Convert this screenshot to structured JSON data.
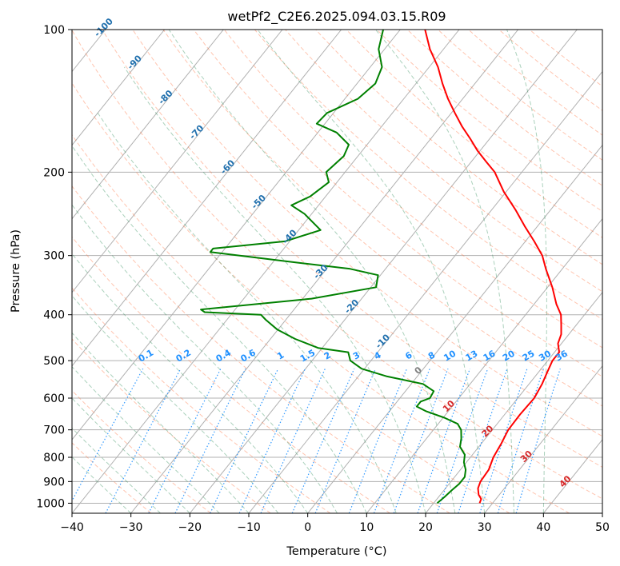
{
  "chart_data": {
    "type": "line",
    "subtype": "skew-t log-p diagram",
    "title": "wetPf2_C2E6.2025.094.03.15.R09",
    "xlabel": "Temperature (°C)",
    "ylabel": "Pressure (hPa)",
    "xlim": [
      -40,
      50
    ],
    "ylim": [
      1050,
      100
    ],
    "y_scale": "log",
    "x_ticks": [
      "−40",
      "−30",
      "−20",
      "−10",
      "0",
      "10",
      "20",
      "30",
      "40",
      "50"
    ],
    "y_ticks": [
      "100",
      "200",
      "300",
      "400",
      "500",
      "600",
      "700",
      "800",
      "900",
      "1000"
    ],
    "grid": true,
    "colors": {
      "temperature": "#ff0000",
      "dewpoint": "#008000",
      "dry_adiabat": "#ff7f50",
      "moist_adiabat": "#2e8b57",
      "mixing_ratio": "#1e90ff",
      "isotherm": "#808080",
      "isotherm_label": "#1f6fad",
      "isotherm_label_warm": "#d62728"
    },
    "isotherm_labels_cold": [
      "-100",
      "-90",
      "-80",
      "-70",
      "-60",
      "-50",
      "-40",
      "-30",
      "-20",
      "-10"
    ],
    "isotherm_labels_cold_values": [
      -100,
      -90,
      -80,
      -70,
      -60,
      -50,
      -40,
      -30,
      -20,
      -10
    ],
    "isotherm_label_zero": "0",
    "isotherm_labels_warm": [
      "10",
      "20",
      "30",
      "40"
    ],
    "isotherm_labels_warm_values": [
      10,
      20,
      30,
      40
    ],
    "mixing_ratio_labels": [
      "0.1",
      "0.2",
      "0.4",
      "0.6",
      "1",
      "1.5",
      "2",
      "3",
      "4",
      "6",
      "8",
      "10",
      "13",
      "16",
      "20",
      "25",
      "30",
      "36"
    ],
    "mixing_ratio_values": [
      0.1,
      0.2,
      0.4,
      0.6,
      1,
      1.5,
      2,
      3,
      4,
      6,
      8,
      10,
      13,
      16,
      20,
      25,
      30,
      36
    ],
    "series": [
      {
        "name": "temperature",
        "points": [
          [
            1000,
            27.8
          ],
          [
            980,
            27.5
          ],
          [
            960,
            26.5
          ],
          [
            930,
            25.5
          ],
          [
            900,
            25.0
          ],
          [
            850,
            24.8
          ],
          [
            800,
            23.9
          ],
          [
            750,
            23.4
          ],
          [
            700,
            22.7
          ],
          [
            650,
            22.6
          ],
          [
            600,
            22.8
          ],
          [
            560,
            22.2
          ],
          [
            530,
            21.5
          ],
          [
            500,
            20.8
          ],
          [
            480,
            20.8
          ],
          [
            460,
            19.4
          ],
          [
            440,
            18.7
          ],
          [
            420,
            17.4
          ],
          [
            400,
            16.0
          ],
          [
            380,
            13.8
          ],
          [
            350,
            10.8
          ],
          [
            320,
            7.2
          ],
          [
            300,
            4.8
          ],
          [
            280,
            1.5
          ],
          [
            260,
            -2.2
          ],
          [
            240,
            -6.0
          ],
          [
            220,
            -10.4
          ],
          [
            200,
            -14.6
          ],
          [
            190,
            -17.5
          ],
          [
            180,
            -20.5
          ],
          [
            170,
            -23.3
          ],
          [
            160,
            -26.4
          ],
          [
            150,
            -29.4
          ],
          [
            140,
            -32.5
          ],
          [
            130,
            -35.5
          ],
          [
            120,
            -38.5
          ],
          [
            110,
            -42.3
          ],
          [
            100,
            -45.8
          ]
        ]
      },
      {
        "name": "dewpoint",
        "points": [
          [
            1000,
            20.6
          ],
          [
            970,
            21.0
          ],
          [
            940,
            21.3
          ],
          [
            910,
            21.7
          ],
          [
            880,
            21.7
          ],
          [
            850,
            20.9
          ],
          [
            820,
            19.6
          ],
          [
            790,
            18.7
          ],
          [
            760,
            16.8
          ],
          [
            730,
            15.9
          ],
          [
            700,
            14.7
          ],
          [
            680,
            13.3
          ],
          [
            660,
            10.2
          ],
          [
            640,
            6.3
          ],
          [
            625,
            4.0
          ],
          [
            610,
            4.0
          ],
          [
            600,
            5.1
          ],
          [
            580,
            4.8
          ],
          [
            560,
            2.0
          ],
          [
            540,
            -5.1
          ],
          [
            520,
            -10.5
          ],
          [
            500,
            -13.5
          ],
          [
            480,
            -15.0
          ],
          [
            470,
            -20.7
          ],
          [
            450,
            -25.8
          ],
          [
            430,
            -30.1
          ],
          [
            410,
            -33.4
          ],
          [
            400,
            -34.9
          ],
          [
            395,
            -44.8
          ],
          [
            390,
            -45.8
          ],
          [
            370,
            -28.5
          ],
          [
            350,
            -19.1
          ],
          [
            330,
            -20.4
          ],
          [
            320,
            -26.0
          ],
          [
            310,
            -36.3
          ],
          [
            295,
            -52.0
          ],
          [
            290,
            -52.0
          ],
          [
            280,
            -40.8
          ],
          [
            265,
            -36.3
          ],
          [
            245,
            -41.2
          ],
          [
            235,
            -44.6
          ],
          [
            225,
            -42.6
          ],
          [
            210,
            -41.4
          ],
          [
            200,
            -43.2
          ],
          [
            185,
            -42.4
          ],
          [
            175,
            -43.1
          ],
          [
            165,
            -46.8
          ],
          [
            158,
            -51.4
          ],
          [
            150,
            -51.1
          ],
          [
            140,
            -47.8
          ],
          [
            130,
            -46.9
          ],
          [
            120,
            -48.0
          ],
          [
            110,
            -51.0
          ],
          [
            100,
            -52.9
          ]
        ]
      }
    ]
  }
}
